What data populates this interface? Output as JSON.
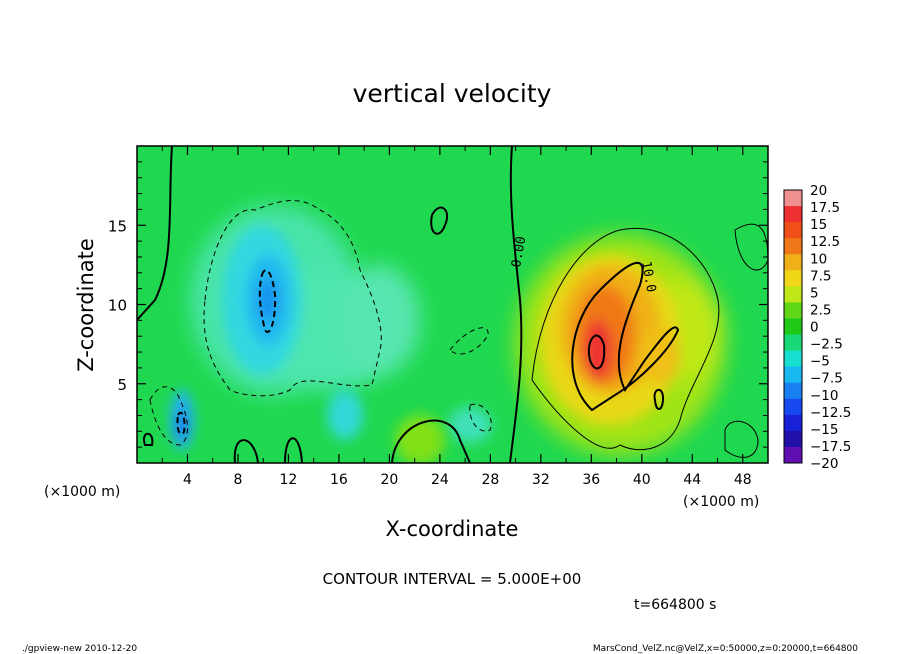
{
  "chart_data": {
    "type": "heatmap",
    "title": "vertical velocity",
    "xlabel": "X-coordinate",
    "ylabel": "Z-coordinate",
    "x_unit_label": "(×1000 m)",
    "z_unit_label": "(×1000 m)",
    "xlim": [
      0,
      50
    ],
    "ylim": [
      0,
      20
    ],
    "x_ticks": [
      "4",
      "8",
      "12",
      "16",
      "20",
      "24",
      "28",
      "32",
      "36",
      "40",
      "44",
      "48"
    ],
    "x_tick_values": [
      4,
      8,
      12,
      16,
      20,
      24,
      28,
      32,
      36,
      40,
      44,
      48
    ],
    "y_ticks": [
      "5",
      "10",
      "15"
    ],
    "y_tick_values": [
      5,
      10,
      15
    ],
    "colorbar_labels": [
      "20",
      "17.5",
      "15",
      "12.5",
      "10",
      "7.5",
      "5",
      "2.5",
      "0",
      "−2.5",
      "−5",
      "−7.5",
      "−10",
      "−12.5",
      "−15",
      "−17.5",
      "−20"
    ],
    "colorbar_colors": [
      "#f09090",
      "#ee3030",
      "#f05018",
      "#f07818",
      "#f0b018",
      "#f0d818",
      "#c0e818",
      "#60d818",
      "#20c818",
      "#18d878",
      "#18e0d0",
      "#18b8f0",
      "#1880f0",
      "#1848f0",
      "#1820d8",
      "#2010a8",
      "#6010b0"
    ],
    "contour_labels": [
      "0.00",
      "10.0"
    ],
    "features": [
      {
        "kind": "updraft",
        "x_center": 37,
        "z_center": 7,
        "peak": 15
      },
      {
        "kind": "downdraft",
        "x_center": 10.5,
        "z_center": 10,
        "peak": -10
      },
      {
        "kind": "downdraft",
        "x_center": 3.5,
        "z_center": 2.5,
        "peak": -10
      }
    ],
    "contour_interval_text": "CONTOUR INTERVAL = 5.000E+00",
    "time_text": "t=664800 s"
  },
  "footer": {
    "left": "./gpview-new  2010-12-20",
    "right": "MarsCond_VelZ.nc@VelZ,x=0:50000,z=0:20000,t=664800"
  }
}
